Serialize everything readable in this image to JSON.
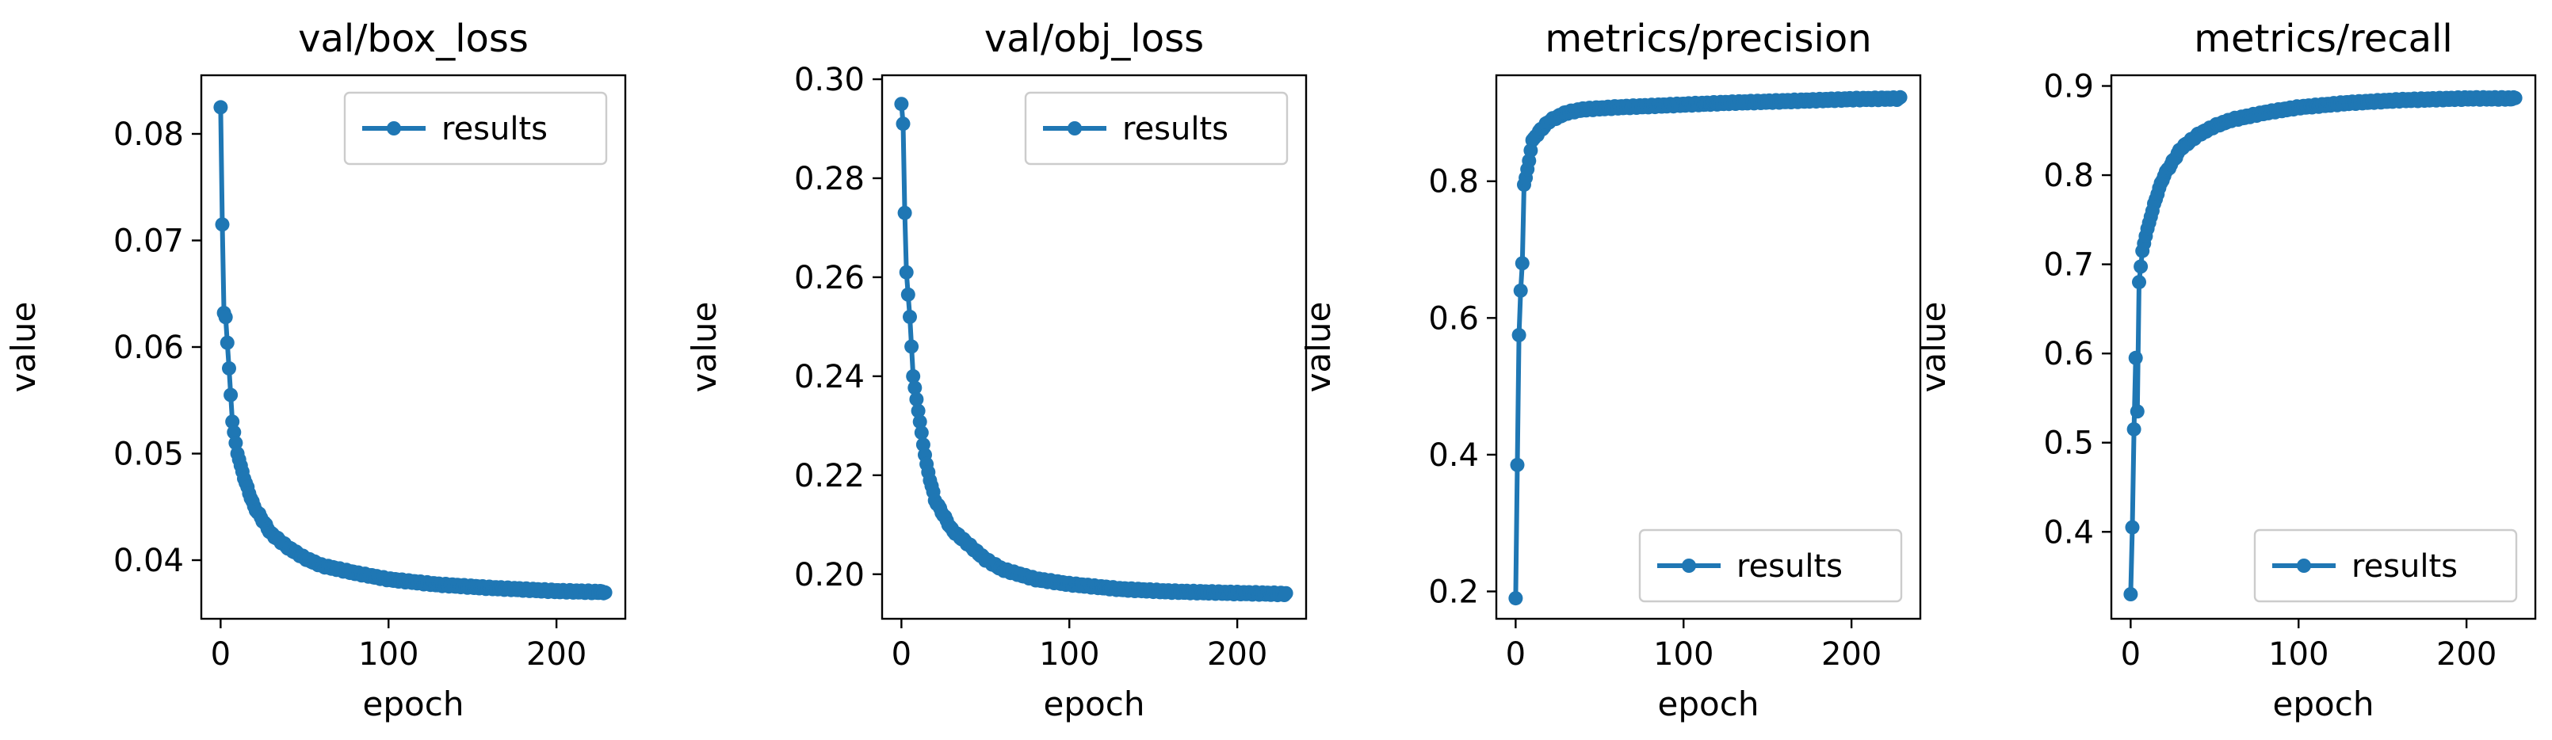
{
  "chart_data": [
    {
      "type": "line",
      "title": "val/box_loss",
      "xlabel": "epoch",
      "ylabel": "value",
      "xlim": [
        -11.5,
        241
      ],
      "ylim": [
        0.0345,
        0.0855
      ],
      "xticks": [
        0,
        100,
        200
      ],
      "xticklabels": [
        "0",
        "100",
        "200"
      ],
      "yticks": [
        0.04,
        0.05,
        0.06,
        0.07,
        0.08
      ],
      "yticklabels": [
        "0.04",
        "0.05",
        "0.06",
        "0.07",
        "0.08"
      ],
      "legend": {
        "label": "results",
        "loc": "upper right"
      },
      "color": "#1f77b4",
      "series": [
        {
          "name": "results",
          "anchors_x": [
            0,
            1,
            2,
            3,
            5,
            7,
            10,
            15,
            20,
            30,
            40,
            50,
            60,
            80,
            100,
            130,
            160,
            200,
            229
          ],
          "anchors_y": [
            0.0825,
            0.0715,
            0.0632,
            0.0628,
            0.058,
            0.053,
            0.05,
            0.0472,
            0.045,
            0.0425,
            0.0412,
            0.0402,
            0.0395,
            0.0388,
            0.0382,
            0.0377,
            0.0374,
            0.0371,
            0.037
          ]
        }
      ]
    },
    {
      "type": "line",
      "title": "val/obj_loss",
      "xlabel": "epoch",
      "ylabel": "value",
      "xlim": [
        -11.5,
        241
      ],
      "ylim": [
        0.191,
        0.3008
      ],
      "xticks": [
        0,
        100,
        200
      ],
      "xticklabels": [
        "0",
        "100",
        "200"
      ],
      "yticks": [
        0.2,
        0.22,
        0.24,
        0.26,
        0.28,
        0.3
      ],
      "yticklabels": [
        "0.20",
        "0.22",
        "0.24",
        "0.26",
        "0.28",
        "0.30"
      ],
      "legend": {
        "label": "results",
        "loc": "upper right"
      },
      "color": "#1f77b4",
      "series": [
        {
          "name": "results",
          "anchors_x": [
            0,
            1,
            2,
            3,
            5,
            7,
            10,
            15,
            20,
            30,
            40,
            50,
            60,
            80,
            100,
            130,
            160,
            200,
            229
          ],
          "anchors_y": [
            0.295,
            0.291,
            0.273,
            0.261,
            0.252,
            0.24,
            0.233,
            0.222,
            0.215,
            0.209,
            0.206,
            0.203,
            0.201,
            0.199,
            0.198,
            0.197,
            0.1965,
            0.1962,
            0.196
          ]
        }
      ]
    },
    {
      "type": "line",
      "title": "metrics/precision",
      "xlabel": "epoch",
      "ylabel": "value",
      "xlim": [
        -11.5,
        241
      ],
      "ylim": [
        0.16,
        0.955
      ],
      "xticks": [
        0,
        100,
        200
      ],
      "xticklabels": [
        "0",
        "100",
        "200"
      ],
      "yticks": [
        0.2,
        0.4,
        0.6,
        0.8
      ],
      "yticklabels": [
        "0.2",
        "0.4",
        "0.6",
        "0.8"
      ],
      "legend": {
        "label": "results",
        "loc": "lower right"
      },
      "color": "#1f77b4",
      "series": [
        {
          "name": "results",
          "anchors_x": [
            0,
            1,
            2,
            3,
            4,
            5,
            6,
            8,
            10,
            15,
            20,
            30,
            40,
            60,
            80,
            100,
            130,
            160,
            200,
            229
          ],
          "anchors_y": [
            0.19,
            0.385,
            0.575,
            0.64,
            0.68,
            0.795,
            0.805,
            0.83,
            0.86,
            0.875,
            0.888,
            0.9,
            0.905,
            0.908,
            0.91,
            0.912,
            0.915,
            0.917,
            0.92,
            0.921
          ]
        }
      ]
    },
    {
      "type": "line",
      "title": "metrics/recall",
      "xlabel": "epoch",
      "ylabel": "value",
      "xlim": [
        -11.5,
        241
      ],
      "ylim": [
        0.3025,
        0.912
      ],
      "xticks": [
        0,
        100,
        200
      ],
      "xticklabels": [
        "0",
        "100",
        "200"
      ],
      "yticks": [
        0.4,
        0.5,
        0.6,
        0.7,
        0.8,
        0.9
      ],
      "yticklabels": [
        "0.4",
        "0.5",
        "0.6",
        "0.7",
        "0.8",
        "0.9"
      ],
      "legend": {
        "label": "results",
        "loc": "lower right"
      },
      "color": "#1f77b4",
      "series": [
        {
          "name": "results",
          "anchors_x": [
            0,
            1,
            2,
            3,
            4,
            5,
            7,
            10,
            13,
            16,
            20,
            25,
            30,
            40,
            50,
            60,
            80,
            100,
            130,
            160,
            200,
            229
          ],
          "anchors_y": [
            0.33,
            0.405,
            0.515,
            0.595,
            0.535,
            0.68,
            0.715,
            0.74,
            0.76,
            0.78,
            0.8,
            0.815,
            0.83,
            0.845,
            0.855,
            0.862,
            0.87,
            0.876,
            0.881,
            0.884,
            0.886,
            0.886
          ]
        }
      ]
    }
  ]
}
